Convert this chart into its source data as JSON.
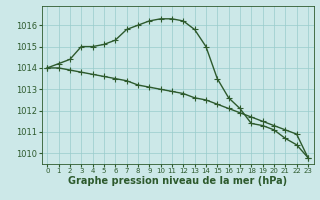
{
  "line1_x": [
    0,
    1,
    2,
    3,
    4,
    5,
    6,
    7,
    8,
    9,
    10,
    11,
    12,
    13,
    14,
    15,
    16,
    17,
    18,
    19,
    20,
    21,
    22,
    23
  ],
  "line1_y": [
    1014.0,
    1014.2,
    1014.4,
    1015.0,
    1015.0,
    1015.1,
    1015.3,
    1015.8,
    1016.0,
    1016.2,
    1016.3,
    1016.3,
    1016.2,
    1015.8,
    1015.0,
    1013.5,
    1012.6,
    1012.1,
    1011.4,
    1011.3,
    1011.1,
    1010.7,
    1010.4,
    1009.8
  ],
  "line2_x": [
    0,
    1,
    2,
    3,
    4,
    5,
    6,
    7,
    8,
    9,
    10,
    11,
    12,
    13,
    14,
    15,
    16,
    17,
    18,
    19,
    20,
    21,
    22,
    23
  ],
  "line2_y": [
    1014.0,
    1014.0,
    1013.9,
    1013.8,
    1013.7,
    1013.6,
    1013.5,
    1013.4,
    1013.2,
    1013.1,
    1013.0,
    1012.9,
    1012.8,
    1012.6,
    1012.5,
    1012.3,
    1012.1,
    1011.9,
    1011.7,
    1011.5,
    1011.3,
    1011.1,
    1010.9,
    1009.8
  ],
  "line_color": "#2d5a2d",
  "bg_color": "#cce8e8",
  "grid_color": "#99cccc",
  "xlabel": "Graphe pression niveau de la mer (hPa)",
  "ylim": [
    1009.5,
    1016.9
  ],
  "yticks": [
    1010,
    1011,
    1012,
    1013,
    1014,
    1015,
    1016
  ],
  "xticks": [
    0,
    1,
    2,
    3,
    4,
    5,
    6,
    7,
    8,
    9,
    10,
    11,
    12,
    13,
    14,
    15,
    16,
    17,
    18,
    19,
    20,
    21,
    22,
    23
  ],
  "marker": "+",
  "markersize": 4,
  "linewidth": 1.0,
  "xlabel_fontsize": 7,
  "ytick_fontsize": 6,
  "xtick_fontsize": 5
}
